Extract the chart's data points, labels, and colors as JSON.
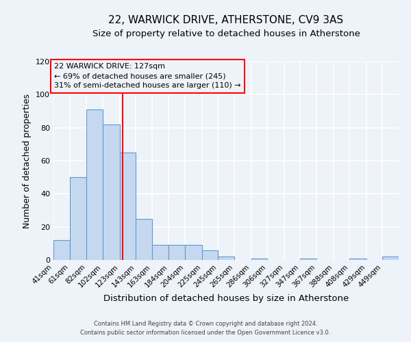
{
  "title": "22, WARWICK DRIVE, ATHERSTONE, CV9 3AS",
  "subtitle": "Size of property relative to detached houses in Atherstone",
  "xlabel": "Distribution of detached houses by size in Atherstone",
  "ylabel": "Number of detached properties",
  "bin_labels": [
    "41sqm",
    "61sqm",
    "82sqm",
    "102sqm",
    "123sqm",
    "143sqm",
    "163sqm",
    "184sqm",
    "204sqm",
    "225sqm",
    "245sqm",
    "265sqm",
    "286sqm",
    "306sqm",
    "327sqm",
    "347sqm",
    "367sqm",
    "388sqm",
    "408sqm",
    "429sqm",
    "449sqm"
  ],
  "bin_edges": [
    41,
    61,
    82,
    102,
    123,
    143,
    163,
    184,
    204,
    225,
    245,
    265,
    286,
    306,
    327,
    347,
    367,
    388,
    408,
    429,
    449
  ],
  "bar_heights": [
    12,
    50,
    91,
    82,
    65,
    25,
    9,
    9,
    9,
    6,
    2,
    0,
    1,
    0,
    0,
    1,
    0,
    0,
    1,
    0,
    2
  ],
  "bar_color": "#c5d8f0",
  "bar_edge_color": "#5b9bd5",
  "property_size": 127,
  "vline_color": "red",
  "annotation_title": "22 WARWICK DRIVE: 127sqm",
  "annotation_line1": "← 69% of detached houses are smaller (245)",
  "annotation_line2": "31% of semi-detached houses are larger (110) →",
  "annotation_box_edge": "red",
  "ylim": [
    0,
    120
  ],
  "yticks": [
    0,
    20,
    40,
    60,
    80,
    100,
    120
  ],
  "footnote1": "Contains HM Land Registry data © Crown copyright and database right 2024.",
  "footnote2": "Contains public sector information licensed under the Open Government Licence v3.0.",
  "background_color": "#eef2f9",
  "grid_color": "#ffffff",
  "title_fontsize": 11,
  "subtitle_fontsize": 9.5
}
